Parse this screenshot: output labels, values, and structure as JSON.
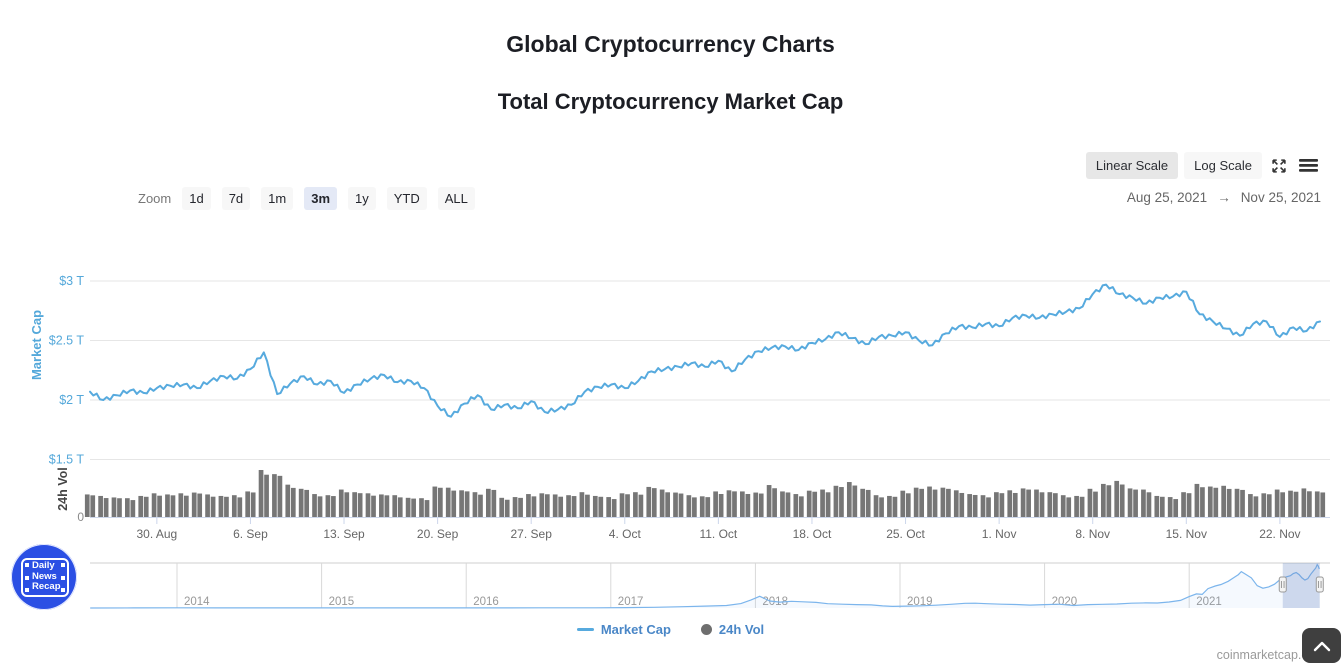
{
  "page": {
    "title": "Global Cryptocurrency Charts",
    "subtitle": "Total Cryptocurrency Market Cap",
    "watermark": "coinmarketcap.com"
  },
  "toolbar": {
    "scale_buttons": [
      {
        "label": "Linear Scale",
        "selected": true
      },
      {
        "label": "Log Scale",
        "selected": false
      }
    ],
    "zoom_label": "Zoom",
    "zoom_buttons": [
      {
        "label": "1d",
        "selected": false
      },
      {
        "label": "7d",
        "selected": false
      },
      {
        "label": "1m",
        "selected": false
      },
      {
        "label": "3m",
        "selected": true
      },
      {
        "label": "1y",
        "selected": false
      },
      {
        "label": "YTD",
        "selected": false
      },
      {
        "label": "ALL",
        "selected": false
      }
    ],
    "date_range": {
      "from": "Aug 25, 2021",
      "arrow": "→",
      "to": "Nov 25, 2021"
    }
  },
  "legend": {
    "items": [
      {
        "label": "Market Cap",
        "marker": "line",
        "color": "#57aade"
      },
      {
        "label": "24h Vol",
        "marker": "circle",
        "color": "#6e6e6e"
      }
    ]
  },
  "logo": {
    "lines": [
      "Daily",
      "News",
      "Recap"
    ]
  },
  "colors": {
    "line": "#57aade",
    "volume_bar": "#767676",
    "y_labels": "#54a8da",
    "grid": "#e6e6e6",
    "axis_line": "#ccd6eb",
    "x_labels": "#666666",
    "nav_line": "#7cb5ec",
    "nav_grid": "#d8d8d8",
    "nav_labels": "#999999"
  },
  "chart_data": [
    {
      "id": "market-cap",
      "type": "line",
      "name": "Market Cap",
      "color": "#57aade",
      "axis_title": "Market Cap",
      "yticks": [
        {
          "label": "$3 T",
          "value": 3
        },
        {
          "label": "$2.5 T",
          "value": 2.5
        },
        {
          "label": "$2 T",
          "value": 2
        },
        {
          "label": "$1.5 T",
          "value": 1.5
        }
      ],
      "ylim": [
        1.5,
        3.45
      ],
      "unit": "USD trillions",
      "start_date": "2021-08-25",
      "end_date": "2021-11-25",
      "interval": "daily",
      "xticks": [
        {
          "day": 5,
          "label": "30. Aug"
        },
        {
          "day": 12,
          "label": "6. Sep"
        },
        {
          "day": 19,
          "label": "13. Sep"
        },
        {
          "day": 26,
          "label": "20. Sep"
        },
        {
          "day": 33,
          "label": "27. Sep"
        },
        {
          "day": 40,
          "label": "4. Oct"
        },
        {
          "day": 47,
          "label": "11. Oct"
        },
        {
          "day": 54,
          "label": "18. Oct"
        },
        {
          "day": 61,
          "label": "25. Oct"
        },
        {
          "day": 68,
          "label": "1. Nov"
        },
        {
          "day": 75,
          "label": "8. Nov"
        },
        {
          "day": 82,
          "label": "15. Nov"
        },
        {
          "day": 89,
          "label": "22. Nov"
        }
      ],
      "values": [
        2.07,
        2.0,
        2.04,
        2.08,
        2.06,
        2.1,
        2.12,
        2.13,
        2.1,
        2.16,
        2.2,
        2.18,
        2.26,
        2.4,
        2.05,
        2.14,
        2.2,
        2.13,
        2.16,
        2.06,
        2.13,
        2.18,
        2.21,
        2.15,
        2.16,
        2.1,
        1.95,
        1.86,
        1.97,
        2.04,
        1.92,
        1.96,
        1.93,
        1.99,
        1.9,
        1.92,
        1.96,
        2.07,
        2.11,
        2.13,
        2.1,
        2.16,
        2.24,
        2.26,
        2.28,
        2.31,
        2.28,
        2.33,
        2.24,
        2.34,
        2.41,
        2.44,
        2.45,
        2.42,
        2.48,
        2.51,
        2.57,
        2.52,
        2.47,
        2.53,
        2.54,
        2.57,
        2.5,
        2.46,
        2.56,
        2.62,
        2.61,
        2.64,
        2.62,
        2.69,
        2.71,
        2.69,
        2.72,
        2.74,
        2.77,
        2.89,
        2.97,
        2.89,
        2.86,
        2.81,
        2.86,
        2.87,
        2.91,
        2.72,
        2.66,
        2.6,
        2.54,
        2.64,
        2.66,
        2.53,
        2.61,
        2.58,
        2.66
      ]
    },
    {
      "id": "volume-24h",
      "type": "bar",
      "name": "24h Vol",
      "color": "#767676",
      "axis_title": "24h Vol",
      "zero_label": "0",
      "unit": "USD billions",
      "ymax_ref": 250,
      "values": [
        120,
        112,
        104,
        100,
        112,
        126,
        120,
        126,
        130,
        120,
        112,
        116,
        136,
        250,
        228,
        172,
        150,
        122,
        116,
        146,
        132,
        126,
        120,
        116,
        102,
        100,
        162,
        156,
        142,
        132,
        150,
        102,
        106,
        122,
        126,
        120,
        116,
        132,
        112,
        106,
        126,
        132,
        160,
        146,
        130,
        116,
        110,
        136,
        142,
        136,
        130,
        170,
        136,
        122,
        140,
        146,
        166,
        186,
        150,
        116,
        112,
        140,
        156,
        162,
        156,
        142,
        122,
        116,
        132,
        142,
        152,
        146,
        132,
        116,
        112,
        150,
        176,
        192,
        152,
        146,
        112,
        106,
        132,
        176,
        162,
        166,
        150,
        122,
        126,
        146,
        140,
        152,
        136
      ]
    },
    {
      "id": "navigator",
      "type": "area",
      "color": "#7cb5ec",
      "ymax_ref": 3.0,
      "unit": "USD trillions",
      "year_labels": [
        2014,
        2015,
        2016,
        2017,
        2018,
        2019,
        2020,
        2021
      ],
      "points": [
        [
          2013.4,
          0.002
        ],
        [
          2013.7,
          0.004
        ],
        [
          2014.0,
          0.012
        ],
        [
          2014.3,
          0.008
        ],
        [
          2014.6,
          0.006
        ],
        [
          2015.0,
          0.005
        ],
        [
          2015.4,
          0.004
        ],
        [
          2015.8,
          0.006
        ],
        [
          2016.1,
          0.009
        ],
        [
          2016.5,
          0.012
        ],
        [
          2016.9,
          0.016
        ],
        [
          2017.1,
          0.025
        ],
        [
          2017.3,
          0.045
        ],
        [
          2017.5,
          0.09
        ],
        [
          2017.65,
          0.13
        ],
        [
          2017.8,
          0.17
        ],
        [
          2017.9,
          0.3
        ],
        [
          2017.97,
          0.55
        ],
        [
          2018.03,
          0.8
        ],
        [
          2018.1,
          0.48
        ],
        [
          2018.17,
          0.4
        ],
        [
          2018.25,
          0.46
        ],
        [
          2018.33,
          0.42
        ],
        [
          2018.42,
          0.38
        ],
        [
          2018.5,
          0.29
        ],
        [
          2018.6,
          0.26
        ],
        [
          2018.7,
          0.23
        ],
        [
          2018.8,
          0.21
        ],
        [
          2018.88,
          0.14
        ],
        [
          2018.95,
          0.11
        ],
        [
          2019.05,
          0.13
        ],
        [
          2019.15,
          0.15
        ],
        [
          2019.25,
          0.19
        ],
        [
          2019.35,
          0.25
        ],
        [
          2019.45,
          0.32
        ],
        [
          2019.52,
          0.33
        ],
        [
          2019.6,
          0.29
        ],
        [
          2019.7,
          0.26
        ],
        [
          2019.8,
          0.24
        ],
        [
          2019.9,
          0.2
        ],
        [
          2020.0,
          0.23
        ],
        [
          2020.1,
          0.26
        ],
        [
          2020.2,
          0.17
        ],
        [
          2020.3,
          0.23
        ],
        [
          2020.4,
          0.25
        ],
        [
          2020.5,
          0.27
        ],
        [
          2020.6,
          0.33
        ],
        [
          2020.7,
          0.35
        ],
        [
          2020.78,
          0.34
        ],
        [
          2020.86,
          0.41
        ],
        [
          2020.94,
          0.52
        ],
        [
          2021.0,
          0.78
        ],
        [
          2021.05,
          0.96
        ],
        [
          2021.09,
          0.93
        ],
        [
          2021.13,
          1.32
        ],
        [
          2021.18,
          1.5
        ],
        [
          2021.22,
          1.6
        ],
        [
          2021.27,
          1.82
        ],
        [
          2021.31,
          2.08
        ],
        [
          2021.34,
          2.28
        ],
        [
          2021.36,
          2.48
        ],
        [
          2021.39,
          2.3
        ],
        [
          2021.43,
          2.05
        ],
        [
          2021.47,
          1.52
        ],
        [
          2021.51,
          1.35
        ],
        [
          2021.55,
          1.44
        ],
        [
          2021.59,
          1.62
        ],
        [
          2021.63,
          1.95
        ],
        [
          2021.65,
          2.07
        ],
        [
          2021.67,
          2.12
        ],
        [
          2021.7,
          2.2
        ],
        [
          2021.72,
          2.35
        ],
        [
          2021.74,
          2.42
        ],
        [
          2021.76,
          2.28
        ],
        [
          2021.78,
          2.05
        ],
        [
          2021.8,
          1.9
        ],
        [
          2021.82,
          2.0
        ],
        [
          2021.84,
          2.3
        ],
        [
          2021.86,
          2.55
        ],
        [
          2021.875,
          2.72
        ],
        [
          2021.885,
          2.95
        ],
        [
          2021.893,
          2.85
        ],
        [
          2021.9,
          2.66
        ]
      ],
      "selection": {
        "start_year": 2021.647,
        "end_year": 2021.903,
        "mask_color": "rgba(102,133,194,0.28)"
      }
    }
  ]
}
